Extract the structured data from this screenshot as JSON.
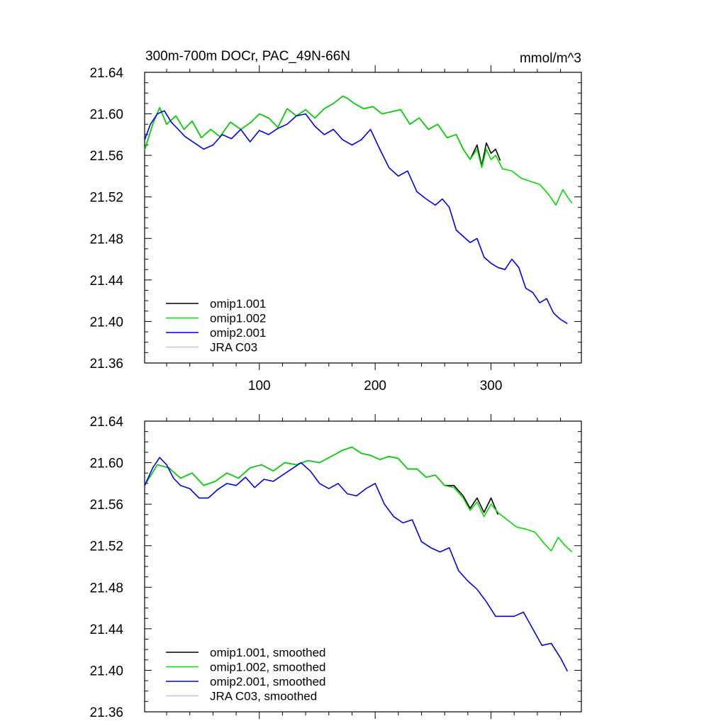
{
  "chart_data": [
    {
      "type": "line",
      "title": "300m-700m DOCr, PAC_49N-66N",
      "units": "mmol/m^3",
      "ylim": [
        21.36,
        21.64
      ],
      "xlim": [
        1,
        378
      ],
      "yticks": [
        "21.64",
        "21.60",
        "21.56",
        "21.52",
        "21.48",
        "21.44",
        "21.40",
        "21.36"
      ],
      "xticks": [
        "100",
        "200",
        "300"
      ],
      "legend_position": "bottom-left",
      "series": [
        {
          "name": "omip1.001",
          "color": "#000000",
          "x": [
            1,
            8,
            14,
            20,
            28,
            35,
            42,
            50,
            58,
            66,
            75,
            84,
            93,
            100,
            108,
            116,
            124,
            132,
            140,
            148,
            156,
            164,
            172,
            176,
            182,
            190,
            198,
            206,
            214,
            222,
            230,
            238,
            246,
            254,
            262,
            270,
            276,
            282,
            288,
            292,
            296,
            300,
            304,
            308
          ],
          "y": [
            21.565,
            21.59,
            21.606,
            21.59,
            21.598,
            21.585,
            21.593,
            21.577,
            21.585,
            21.578,
            21.592,
            21.585,
            21.592,
            21.6,
            21.596,
            21.587,
            21.605,
            21.598,
            21.604,
            21.596,
            21.605,
            21.61,
            21.617,
            21.615,
            21.61,
            21.605,
            21.607,
            21.6,
            21.602,
            21.604,
            21.59,
            21.596,
            21.585,
            21.59,
            21.577,
            21.58,
            21.566,
            21.556,
            21.57,
            21.55,
            21.572,
            21.562,
            21.566,
            21.555
          ]
        },
        {
          "name": "omip1.002",
          "color": "#00dd00",
          "x": [
            1,
            8,
            14,
            20,
            28,
            35,
            42,
            50,
            58,
            66,
            75,
            84,
            93,
            100,
            108,
            116,
            124,
            132,
            140,
            148,
            156,
            164,
            172,
            176,
            182,
            190,
            198,
            206,
            214,
            222,
            230,
            238,
            246,
            254,
            262,
            270,
            276,
            282,
            288,
            292,
            296,
            300,
            304,
            310,
            318,
            326,
            334,
            342,
            350,
            356,
            362,
            366,
            370
          ],
          "y": [
            21.565,
            21.59,
            21.606,
            21.59,
            21.598,
            21.585,
            21.593,
            21.577,
            21.585,
            21.578,
            21.592,
            21.585,
            21.592,
            21.6,
            21.596,
            21.587,
            21.605,
            21.598,
            21.604,
            21.596,
            21.605,
            21.61,
            21.617,
            21.615,
            21.61,
            21.605,
            21.607,
            21.6,
            21.602,
            21.604,
            21.59,
            21.596,
            21.585,
            21.59,
            21.577,
            21.58,
            21.566,
            21.556,
            21.566,
            21.548,
            21.566,
            21.556,
            21.56,
            21.547,
            21.545,
            21.538,
            21.535,
            21.532,
            21.522,
            21.512,
            21.527,
            21.52,
            21.514
          ]
        },
        {
          "name": "omip2.001",
          "color": "#0000ee",
          "x": [
            1,
            6,
            12,
            18,
            24,
            30,
            36,
            44,
            52,
            60,
            68,
            76,
            84,
            92,
            100,
            108,
            116,
            124,
            132,
            140,
            148,
            156,
            164,
            172,
            180,
            188,
            196,
            204,
            212,
            220,
            228,
            236,
            244,
            252,
            258,
            264,
            270,
            276,
            282,
            288,
            294,
            300,
            306,
            312,
            318,
            324,
            330,
            336,
            342,
            348,
            354,
            360,
            366
          ],
          "y": [
            21.575,
            21.59,
            21.6,
            21.603,
            21.592,
            21.585,
            21.578,
            21.572,
            21.566,
            21.57,
            21.58,
            21.576,
            21.585,
            21.573,
            21.584,
            21.58,
            21.586,
            21.59,
            21.598,
            21.6,
            21.588,
            21.58,
            21.585,
            21.575,
            21.57,
            21.575,
            21.585,
            21.566,
            21.548,
            21.54,
            21.545,
            21.525,
            21.518,
            21.512,
            21.518,
            21.51,
            21.488,
            21.482,
            21.476,
            21.48,
            21.462,
            21.456,
            21.452,
            21.45,
            21.46,
            21.452,
            21.432,
            21.428,
            21.418,
            21.422,
            21.408,
            21.402,
            21.398
          ]
        },
        {
          "name": "JRA C03",
          "color": "#c8c8c8",
          "x": [],
          "y": []
        }
      ]
    },
    {
      "type": "line",
      "ylim": [
        21.36,
        21.64
      ],
      "xlim": [
        1,
        378
      ],
      "yticks": [
        "21.64",
        "21.60",
        "21.56",
        "21.52",
        "21.48",
        "21.44",
        "21.40",
        "21.36"
      ],
      "legend_position": "bottom-left",
      "series": [
        {
          "name": "omip1.001, smoothed",
          "color": "#000000",
          "x": [
            1,
            12,
            22,
            32,
            42,
            52,
            62,
            72,
            82,
            92,
            102,
            112,
            122,
            132,
            142,
            152,
            162,
            172,
            180,
            188,
            196,
            204,
            212,
            220,
            228,
            236,
            244,
            252,
            260,
            268,
            276,
            282,
            288,
            294,
            300,
            306
          ],
          "y": [
            21.578,
            21.598,
            21.595,
            21.585,
            21.59,
            21.578,
            21.582,
            21.59,
            21.585,
            21.595,
            21.598,
            21.592,
            21.6,
            21.598,
            21.602,
            21.6,
            21.606,
            21.612,
            21.615,
            21.609,
            21.607,
            21.603,
            21.606,
            21.604,
            21.594,
            21.594,
            21.586,
            21.588,
            21.578,
            21.578,
            21.568,
            21.556,
            21.566,
            21.552,
            21.566,
            21.55
          ]
        },
        {
          "name": "omip1.002, smoothed",
          "color": "#00dd00",
          "x": [
            1,
            12,
            22,
            32,
            42,
            52,
            62,
            72,
            82,
            92,
            102,
            112,
            122,
            132,
            142,
            152,
            162,
            172,
            180,
            188,
            196,
            204,
            212,
            220,
            228,
            236,
            244,
            252,
            260,
            268,
            276,
            282,
            288,
            294,
            300,
            306,
            314,
            322,
            330,
            338,
            346,
            352,
            358,
            364,
            370
          ],
          "y": [
            21.578,
            21.598,
            21.595,
            21.585,
            21.59,
            21.578,
            21.582,
            21.59,
            21.585,
            21.595,
            21.598,
            21.592,
            21.6,
            21.598,
            21.602,
            21.6,
            21.606,
            21.612,
            21.615,
            21.609,
            21.607,
            21.603,
            21.606,
            21.604,
            21.594,
            21.594,
            21.586,
            21.588,
            21.578,
            21.576,
            21.566,
            21.554,
            21.562,
            21.548,
            21.56,
            21.552,
            21.545,
            21.538,
            21.536,
            21.533,
            21.522,
            21.515,
            21.528,
            21.52,
            21.514
          ]
        },
        {
          "name": "omip2.001, smoothed",
          "color": "#0000ee",
          "x": [
            1,
            8,
            14,
            20,
            26,
            32,
            40,
            48,
            56,
            64,
            72,
            80,
            88,
            96,
            104,
            112,
            120,
            128,
            136,
            144,
            152,
            160,
            168,
            176,
            184,
            192,
            200,
            208,
            216,
            224,
            232,
            240,
            248,
            256,
            264,
            272,
            280,
            288,
            296,
            304,
            312,
            320,
            328,
            336,
            344,
            352,
            360,
            366
          ],
          "y": [
            21.578,
            21.595,
            21.605,
            21.598,
            21.585,
            21.578,
            21.575,
            21.566,
            21.566,
            21.574,
            21.58,
            21.578,
            21.586,
            21.576,
            21.584,
            21.582,
            21.588,
            21.594,
            21.6,
            21.592,
            21.58,
            21.575,
            21.58,
            21.57,
            21.568,
            21.575,
            21.58,
            21.56,
            21.548,
            21.542,
            21.545,
            21.524,
            21.518,
            21.514,
            21.518,
            21.496,
            21.486,
            21.478,
            21.466,
            21.452,
            21.452,
            21.452,
            21.456,
            21.44,
            21.424,
            21.426,
            21.412,
            21.399
          ]
        },
        {
          "name": "JRA C03, smoothed",
          "color": "#c8c8c8",
          "x": [],
          "y": []
        }
      ]
    }
  ]
}
